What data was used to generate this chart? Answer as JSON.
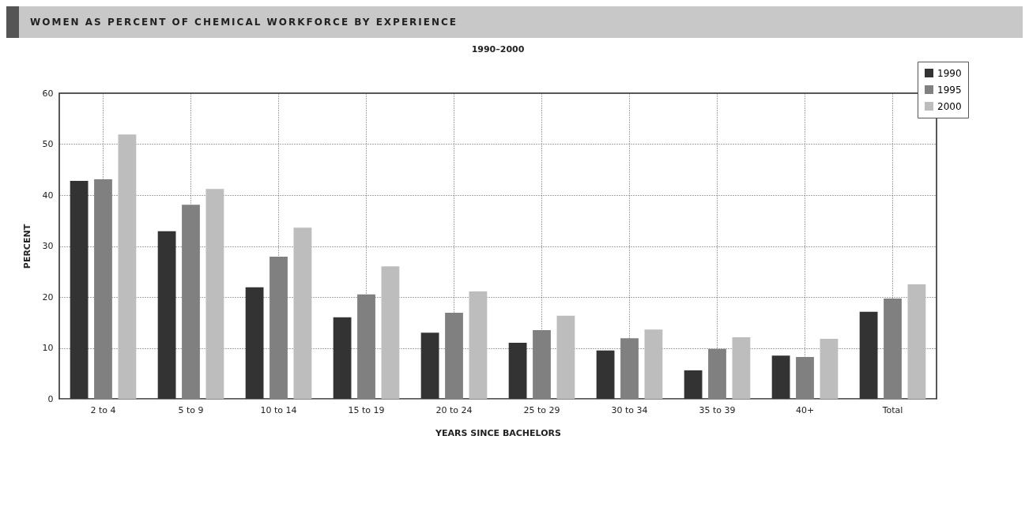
{
  "chart_data": {
    "type": "bar",
    "title": "WOMEN AS PERCENT OF CHEMICAL WORKFORCE BY EXPERIENCE",
    "subtitle": "1990–2000",
    "xlabel": "YEARS SINCE BACHELORS",
    "ylabel": "PERCENT",
    "categories": [
      "2 to 4",
      "5 to 9",
      "10 to 14",
      "15 to 19",
      "20 to 24",
      "25 to 29",
      "30 to 34",
      "35 to 39",
      "40+",
      "Total"
    ],
    "series": [
      {
        "name": "1990",
        "color": "#333333",
        "values": [
          42.8,
          32.9,
          21.9,
          16.0,
          13.0,
          11.0,
          9.5,
          5.6,
          8.5,
          17.1
        ]
      },
      {
        "name": "1995",
        "color": "#808080",
        "values": [
          43.1,
          38.1,
          27.9,
          20.5,
          16.9,
          13.5,
          11.9,
          9.8,
          8.2,
          19.7
        ]
      },
      {
        "name": "2000",
        "color": "#bdbdbd",
        "values": [
          51.9,
          41.2,
          33.6,
          26.0,
          21.1,
          16.3,
          13.6,
          12.1,
          11.8,
          22.5
        ]
      }
    ],
    "ylim": [
      0,
      60
    ],
    "yticks": [
      0,
      10,
      20,
      30,
      40,
      50,
      60
    ],
    "grid": true,
    "legend": "top right"
  }
}
